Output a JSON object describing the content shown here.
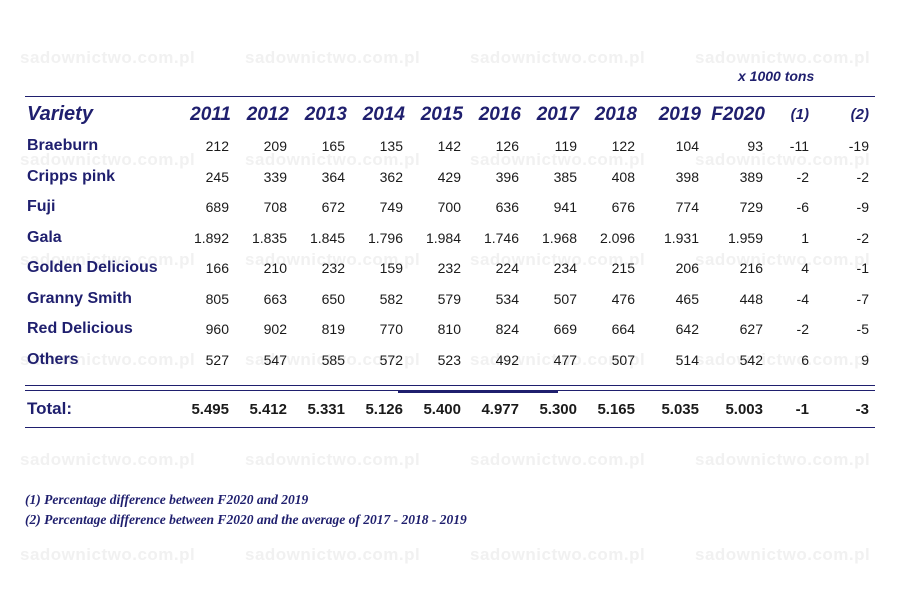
{
  "watermark_text": "sadownictwo.com.pl",
  "unit": "x 1000 tons",
  "headers": [
    "Variety",
    "2011",
    "2012",
    "2013",
    "2014",
    "2015",
    "2016",
    "2017",
    "2018",
    "2019",
    "F2020",
    "(1)",
    "(2)"
  ],
  "rows": [
    {
      "variety": "Braeburn",
      "values": [
        "212",
        "209",
        "165",
        "135",
        "142",
        "126",
        "119",
        "122",
        "104",
        "93",
        "-11",
        "-19"
      ]
    },
    {
      "variety": "Cripps pink",
      "values": [
        "245",
        "339",
        "364",
        "362",
        "429",
        "396",
        "385",
        "408",
        "398",
        "389",
        "-2",
        "-2"
      ]
    },
    {
      "variety": "Fuji",
      "values": [
        "689",
        "708",
        "672",
        "749",
        "700",
        "636",
        "941",
        "676",
        "774",
        "729",
        "-6",
        "-9"
      ]
    },
    {
      "variety": "Gala",
      "values": [
        "1.892",
        "1.835",
        "1.845",
        "1.796",
        "1.984",
        "1.746",
        "1.968",
        "2.096",
        "1.931",
        "1.959",
        "1",
        "-2"
      ]
    },
    {
      "variety": "Golden Delicious",
      "values": [
        "166",
        "210",
        "232",
        "159",
        "232",
        "224",
        "234",
        "215",
        "206",
        "216",
        "4",
        "-1"
      ]
    },
    {
      "variety": "Granny Smith",
      "values": [
        "805",
        "663",
        "650",
        "582",
        "579",
        "534",
        "507",
        "476",
        "465",
        "448",
        "-4",
        "-7"
      ]
    },
    {
      "variety": "Red Delicious",
      "values": [
        "960",
        "902",
        "819",
        "770",
        "810",
        "824",
        "669",
        "664",
        "642",
        "627",
        "-2",
        "-5"
      ]
    },
    {
      "variety": "Others",
      "values": [
        "527",
        "547",
        "585",
        "572",
        "523",
        "492",
        "477",
        "507",
        "514",
        "542",
        "6",
        "9"
      ]
    }
  ],
  "total": {
    "label": "Total:",
    "values": [
      "5.495",
      "5.412",
      "5.331",
      "5.126",
      "5.400",
      "4.977",
      "5.300",
      "5.165",
      "5.035",
      "5.003",
      "-1",
      "-3"
    ]
  },
  "footnotes": [
    "(1) Percentage difference between F2020 and 2019",
    "(2) Percentage difference between F2020 and the average of  2017 - 2018 - 2019"
  ]
}
